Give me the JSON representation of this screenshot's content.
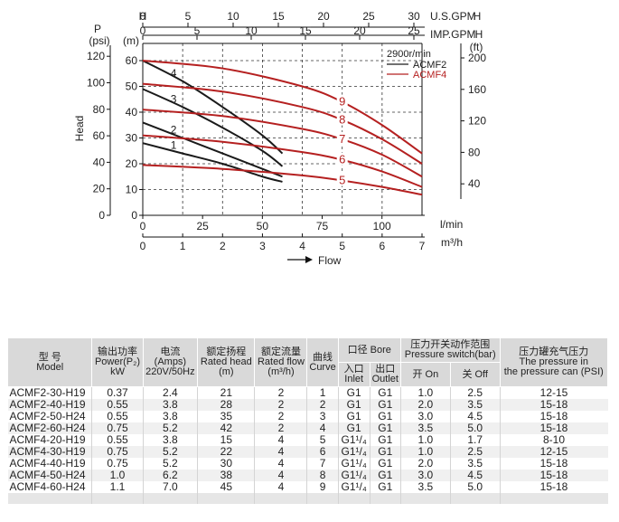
{
  "chart_data": {
    "type": "line",
    "axes": {
      "top_us_gpm": {
        "label": "U.S.GPM",
        "ticks": [
          0,
          5,
          10,
          15,
          20,
          25,
          30
        ],
        "range": [
          0,
          30
        ]
      },
      "top_imp_gpm": {
        "label": "IMP.GPM",
        "prefix": "H",
        "ticks": [
          0,
          5,
          10,
          15,
          20,
          25
        ],
        "range": [
          0,
          25
        ]
      },
      "bottom_lmin": {
        "label": "l/min",
        "ticks": [
          0,
          25,
          50,
          75,
          100
        ],
        "range": [
          0,
          116.7
        ]
      },
      "bottom_m3h": {
        "label": "m³/h",
        "ticks": [
          0,
          1,
          2,
          3,
          4,
          5,
          6,
          7
        ],
        "range": [
          0,
          7
        ]
      },
      "left_psi": {
        "label": "P",
        "unit": "(psi)",
        "ticks": [
          0,
          20,
          40,
          60,
          80,
          100,
          120
        ],
        "range": [
          0,
          117
        ]
      },
      "left_m": {
        "label": "H",
        "unit": "(m)",
        "ticks": [
          0,
          10,
          20,
          30,
          40,
          50,
          60
        ],
        "range": [
          0,
          70
        ]
      },
      "right_ft": {
        "label": "H",
        "unit": "(ft)",
        "ticks": [
          0,
          40,
          80,
          120,
          160,
          200
        ],
        "range": [
          0,
          223
        ]
      }
    },
    "ylabel": "Head",
    "xlabel": "Flow",
    "legend": {
      "title": "2900r/min",
      "entries": [
        {
          "name": "ACMF2",
          "color": "#1a1a1a"
        },
        {
          "name": "ACMF4",
          "color": "#b52020"
        }
      ],
      "position": "top-right"
    },
    "series": [
      {
        "label": "1",
        "model": "ACMF2",
        "x": [
          0,
          1,
          2,
          3,
          3.5
        ],
        "y": [
          28,
          24,
          20,
          15,
          13
        ],
        "label_at": 1
      },
      {
        "label": "2",
        "model": "ACMF2",
        "x": [
          0,
          1,
          2,
          3,
          3.5
        ],
        "y": [
          36,
          30,
          24,
          18,
          15
        ],
        "label_at": 1
      },
      {
        "label": "3",
        "model": "ACMF2",
        "x": [
          0,
          1,
          2,
          3,
          3.5
        ],
        "y": [
          49,
          42,
          34,
          25,
          19
        ],
        "label_at": 1
      },
      {
        "label": "4",
        "model": "ACMF2",
        "x": [
          0,
          1,
          2,
          3,
          3.5
        ],
        "y": [
          60,
          52,
          42,
          31,
          24
        ],
        "label_at": 1
      },
      {
        "label": "5",
        "model": "ACMF4",
        "x": [
          0,
          2,
          4,
          5,
          6,
          7
        ],
        "y": [
          19.5,
          18,
          15.5,
          13.5,
          11,
          8
        ],
        "label_at": 5
      },
      {
        "label": "6",
        "model": "ACMF4",
        "x": [
          0,
          2,
          4,
          5,
          6,
          7
        ],
        "y": [
          31,
          28.5,
          24.5,
          21.5,
          17,
          11
        ],
        "label_at": 5
      },
      {
        "label": "7",
        "model": "ACMF4",
        "x": [
          0,
          2,
          4,
          5,
          6,
          7
        ],
        "y": [
          41,
          38.5,
          33.5,
          29.5,
          23.5,
          15
        ],
        "label_at": 5
      },
      {
        "label": "8",
        "model": "ACMF4",
        "x": [
          0,
          2,
          4,
          5,
          6,
          7
        ],
        "y": [
          51,
          48,
          42,
          37,
          29.5,
          20
        ],
        "label_at": 5
      },
      {
        "label": "9",
        "model": "ACMF4",
        "x": [
          0,
          2,
          4,
          5,
          6,
          7
        ],
        "y": [
          60,
          57,
          50,
          44,
          35,
          24
        ],
        "label_at": 5
      }
    ]
  },
  "table": {
    "header": {
      "model": [
        "型 号",
        "Model"
      ],
      "power": [
        "输出功率",
        "Power(P₂)",
        "kW"
      ],
      "current": [
        "电流",
        "(Amps)",
        "220V/50Hz"
      ],
      "head": [
        "额定扬程",
        "Rated head",
        "(m)"
      ],
      "flow": [
        "额定流量",
        "Rated flow",
        "(m³/h)"
      ],
      "curve": [
        "曲线",
        "Curve"
      ],
      "bore": "口径 Bore",
      "inlet": [
        "入口",
        "Inlet"
      ],
      "outlet": [
        "出口",
        "Outlet"
      ],
      "pswitch": [
        "压力开关动作范围",
        "Pressure switch(bar)"
      ],
      "on": "开 On",
      "off": "关 Off",
      "tank": [
        "压力罐充气压力",
        "The pressure in",
        "the pressure can",
        "(PSI)"
      ]
    },
    "rows": [
      [
        "ACMF2-30-H19",
        "0.37",
        "2.4",
        "21",
        "2",
        "1",
        "G1",
        "G1",
        "1.0",
        "2.5",
        "12-15"
      ],
      [
        "ACMF2-40-H19",
        "0.55",
        "3.8",
        "28",
        "2",
        "2",
        "G1",
        "G1",
        "2.0",
        "3.5",
        "15-18"
      ],
      [
        "ACMF2-50-H24",
        "0.55",
        "3.8",
        "35",
        "2",
        "3",
        "G1",
        "G1",
        "3.0",
        "4.5",
        "15-18"
      ],
      [
        "ACMF2-60-H24",
        "0.75",
        "5.2",
        "42",
        "2",
        "4",
        "G1",
        "G1",
        "3.5",
        "5.0",
        "15-18"
      ],
      [
        "ACMF4-20-H19",
        "0.55",
        "3.8",
        "15",
        "4",
        "5",
        "G1¹/₄",
        "G1",
        "1.0",
        "1.7",
        "8-10"
      ],
      [
        "ACMF4-30-H19",
        "0.75",
        "5.2",
        "22",
        "4",
        "6",
        "G1¹/₄",
        "G1",
        "1.0",
        "2.5",
        "12-15"
      ],
      [
        "ACMF4-40-H19",
        "0.75",
        "5.2",
        "30",
        "4",
        "7",
        "G1¹/₄",
        "G1",
        "2.0",
        "3.5",
        "15-18"
      ],
      [
        "ACMF4-50-H24",
        "1.0",
        "6.2",
        "38",
        "4",
        "8",
        "G1¹/₄",
        "G1",
        "3.0",
        "4.5",
        "15-18"
      ],
      [
        "ACMF4-60-H24",
        "1.1",
        "7.0",
        "45",
        "4",
        "9",
        "G1¹/₄",
        "G1",
        "3.5",
        "5.0",
        "15-18"
      ]
    ]
  }
}
